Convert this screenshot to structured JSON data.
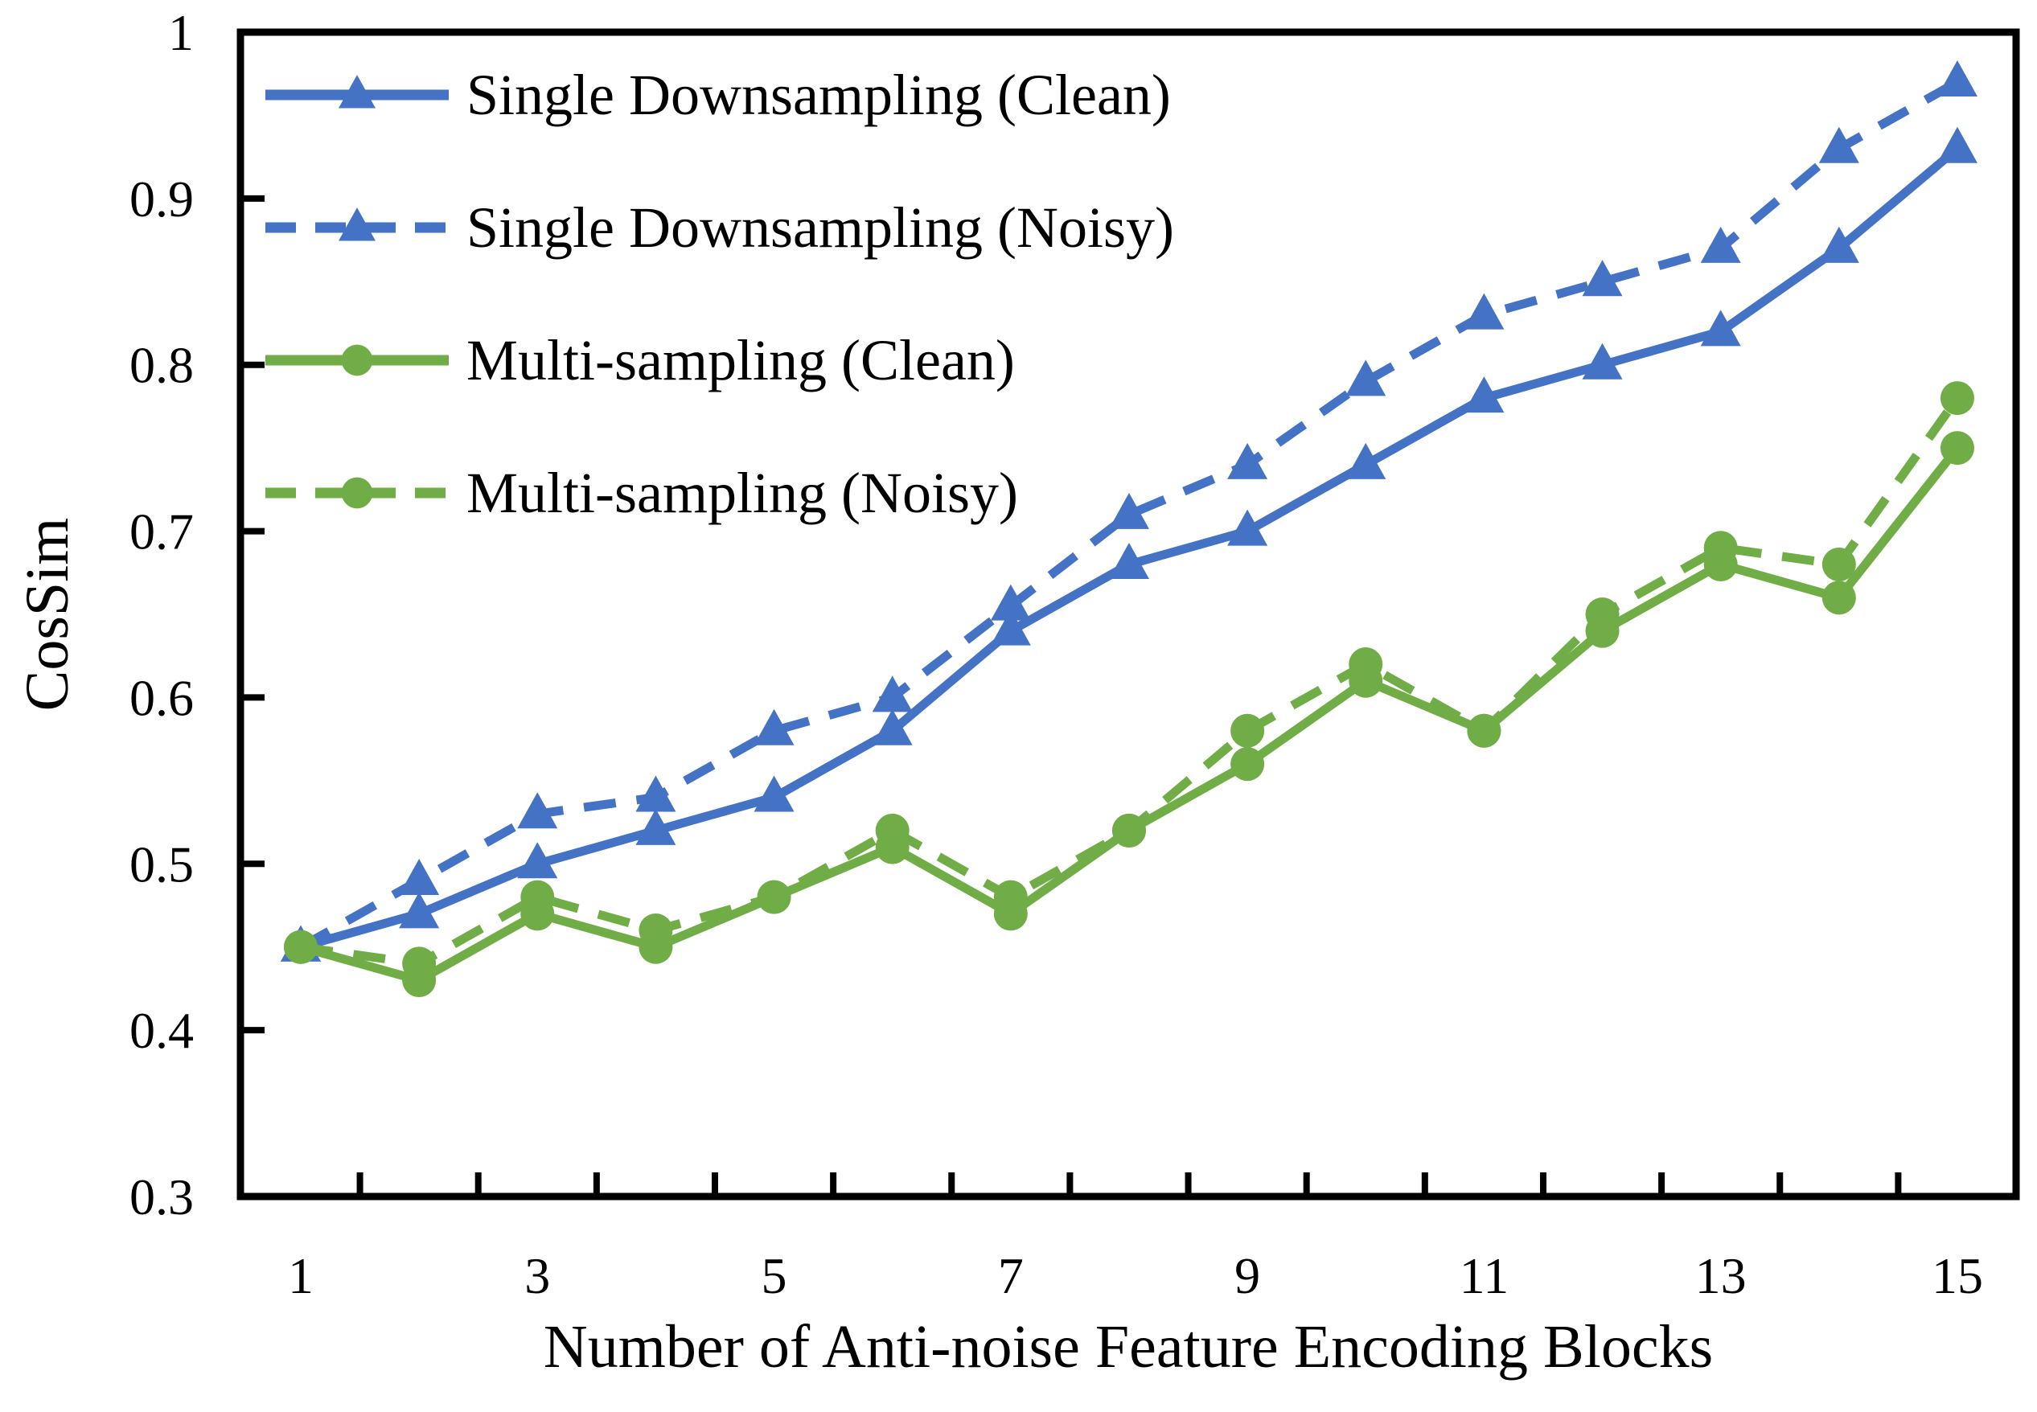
{
  "chart_data": {
    "type": "line",
    "title": "",
    "xlabel": "Number of Anti-noise Feature Encoding Blocks",
    "ylabel": "CosSim",
    "x": [
      1,
      2,
      3,
      4,
      5,
      6,
      7,
      8,
      9,
      10,
      11,
      12,
      13,
      14,
      15
    ],
    "xtick_labels": [
      "1",
      "3",
      "5",
      "7",
      "9",
      "11",
      "13",
      "15"
    ],
    "ytick_values": [
      1,
      0.9,
      0.8,
      0.7,
      0.6,
      0.5,
      0.4,
      0.3
    ],
    "ytick_labels": [
      "1",
      "0.9",
      "0.8",
      "0.7",
      "0.6",
      "0.5",
      "0.4",
      "0.3"
    ],
    "ylim": [
      0.3,
      1
    ],
    "grid": false,
    "legend_position": "top-left",
    "colors": {
      "blue": "#4472C4",
      "green": "#70AD47",
      "axis": "#000000",
      "background": "#FFFFFF"
    },
    "series": [
      {
        "name": "Single Downsampling (Clean)",
        "color": "#4472C4",
        "style": "solid",
        "marker": "triangle",
        "values": [
          0.45,
          0.47,
          0.5,
          0.52,
          0.54,
          0.58,
          0.64,
          0.68,
          0.7,
          0.74,
          0.78,
          0.8,
          0.82,
          0.87,
          0.93
        ]
      },
      {
        "name": "Single Downsampling (Noisy)",
        "color": "#4472C4",
        "style": "dashed",
        "marker": "triangle",
        "values": [
          0.45,
          0.49,
          0.53,
          0.54,
          0.58,
          0.6,
          0.655,
          0.71,
          0.74,
          0.79,
          0.83,
          0.85,
          0.87,
          0.93,
          0.97
        ]
      },
      {
        "name": "Multi-sampling (Clean)",
        "color": "#70AD47",
        "style": "solid",
        "marker": "circle",
        "values": [
          0.45,
          0.43,
          0.47,
          0.45,
          0.48,
          0.51,
          0.47,
          0.52,
          0.56,
          0.61,
          0.58,
          0.64,
          0.68,
          0.66,
          0.75
        ]
      },
      {
        "name": "Multi-sampling (Noisy)",
        "color": "#70AD47",
        "style": "dashed",
        "marker": "circle",
        "values": [
          0.45,
          0.44,
          0.48,
          0.46,
          0.48,
          0.52,
          0.48,
          0.52,
          0.58,
          0.62,
          0.58,
          0.65,
          0.69,
          0.68,
          0.78
        ]
      }
    ]
  }
}
